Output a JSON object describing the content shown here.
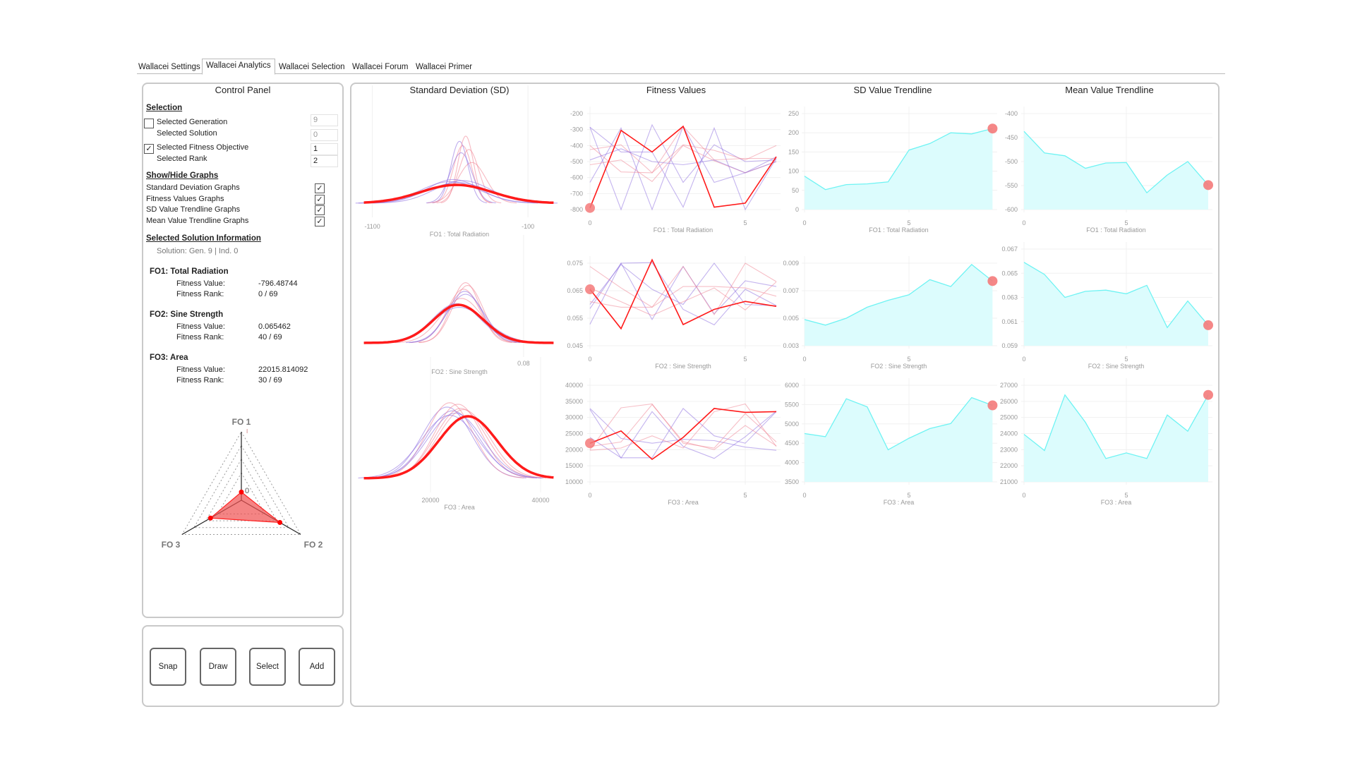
{
  "tabs": [
    "Wallacei Settings",
    "Wallacei Analytics",
    "Wallacei Selection",
    "Wallacei Forum",
    "Wallacei Primer"
  ],
  "active_tab": "Wallacei Analytics",
  "control_panel": {
    "title": "Control Panel",
    "selection": {
      "heading": "Selection",
      "selected_generation_label": "Selected Generation",
      "selected_generation_value": "9",
      "selected_generation_checked": false,
      "selected_solution_label": "Selected Solution",
      "selected_solution_value": "0",
      "selected_fitness_objective_label": "Selected Fitness Objective",
      "selected_fitness_objective_value": "1",
      "selected_fitness_objective_checked": true,
      "selected_rank_label": "Selected Rank",
      "selected_rank_value": "2"
    },
    "show_hide": {
      "heading": "Show/Hide Graphs",
      "items": [
        {
          "label": "Standard Deviation Graphs",
          "checked": true
        },
        {
          "label": "Fitness Values Graphs",
          "checked": true
        },
        {
          "label": "SD Value Trendline Graphs",
          "checked": true
        },
        {
          "label": "Mean Value Trendline Graphs",
          "checked": true
        }
      ]
    },
    "solution_info": {
      "heading": "Selected Solution Information",
      "solution": "Solution: Gen. 9 | Ind. 0",
      "objectives": [
        {
          "name": "FO1:  Total Radiation",
          "value_label": "Fitness Value:",
          "value": "-796.48744",
          "rank_label": "Fitness Rank:",
          "rank": "0 / 69"
        },
        {
          "name": "FO2:  Sine Strength",
          "value_label": "Fitness Value:",
          "value": "0.065462",
          "rank_label": "Fitness Rank:",
          "rank": "40 / 69"
        },
        {
          "name": "FO3:  Area",
          "value_label": "Fitness Value:",
          "value": "22015.814092",
          "rank_label": "Fitness Rank:",
          "rank": "30 / 69"
        }
      ]
    },
    "radar": {
      "axes": [
        "FO 1",
        "FO 2",
        "FO 3"
      ],
      "values": [
        0.12,
        0.65,
        0.52
      ],
      "zero_label": "0",
      "top_tick": "I",
      "fill_color": "#f05050"
    }
  },
  "buttons": [
    "Snap",
    "Draw",
    "Select",
    "Add"
  ],
  "columns": [
    "Standard Deviation (SD)",
    "Fitness Values",
    "SD Value Trendline",
    "Mean Value Trendline"
  ],
  "colors": {
    "selected": "#ff1a1a",
    "pink": "#f08090",
    "purple": "#8a6ae0",
    "trend_line": "#6ff3f3",
    "trend_fill": "#dcfcfd",
    "marker": "#f47a7a"
  },
  "chart_data": [
    {
      "kind": "sd",
      "type": "line",
      "xlabel": "FO1 : Total Radiation",
      "xticks": [
        -1100,
        -100
      ],
      "xlim": [
        -1180,
        90
      ],
      "curves": [
        {
          "mean": -560,
          "sd": 230,
          "selected": true
        },
        {
          "mean": -520,
          "sd": 60,
          "c": "pink"
        },
        {
          "mean": -540,
          "sd": 55,
          "c": "purple"
        },
        {
          "mean": -500,
          "sd": 50,
          "c": "pink"
        },
        {
          "mean": -460,
          "sd": 90,
          "c": "pink"
        },
        {
          "mean": -530,
          "sd": 70,
          "c": "purple"
        },
        {
          "mean": -480,
          "sd": 65,
          "c": "pink"
        },
        {
          "mean": -600,
          "sd": 190,
          "c": "purple"
        },
        {
          "mean": -580,
          "sd": 170,
          "c": "purple"
        },
        {
          "mean": -550,
          "sd": 200,
          "c": "purple"
        },
        {
          "mean": -520,
          "sd": 180,
          "c": "purple"
        }
      ]
    },
    {
      "kind": "fitness",
      "type": "line",
      "xlabel": "FO1 : Total Radiation",
      "xticks": [
        0,
        5
      ],
      "ylim": [
        -800,
        -200
      ],
      "yticks": [
        -200,
        -300,
        -400,
        -500,
        -600,
        -700,
        -800
      ],
      "series": [
        {
          "c": "purple",
          "values": [
            -285,
            -440,
            -440,
            -785,
            -290,
            -800,
            -480
          ]
        },
        {
          "c": "purple",
          "values": [
            -285,
            -800,
            -270,
            -630,
            -395,
            -500,
            -490
          ]
        },
        {
          "c": "purple",
          "values": [
            -630,
            -290,
            -800,
            -280,
            -630,
            -570,
            -470
          ]
        },
        {
          "c": "pink",
          "values": [
            -400,
            -565,
            -570,
            -280,
            -490,
            -480,
            -480
          ]
        },
        {
          "c": "pink",
          "values": [
            -425,
            -395,
            -570,
            -395,
            -430,
            -490,
            -400
          ]
        },
        {
          "c": "pink",
          "values": [
            -520,
            -490,
            -625,
            -400,
            -495,
            -570,
            -500
          ]
        },
        {
          "c": "purple",
          "values": [
            -490,
            -420,
            -500,
            -520,
            -490,
            -570,
            -500
          ]
        },
        {
          "c": "selected",
          "values": [
            -790,
            -305,
            -440,
            -280,
            -785,
            -760,
            -470
          ]
        }
      ]
    },
    {
      "kind": "sd_trend",
      "type": "area",
      "xlabel": "FO1 : Total Radiation",
      "xticks": [
        0,
        5
      ],
      "ylim": [
        0,
        250
      ],
      "yticks": [
        0,
        50,
        100,
        150,
        200,
        250
      ],
      "values": [
        87,
        52,
        65,
        67,
        72,
        155,
        172,
        200,
        197,
        211
      ]
    },
    {
      "kind": "mean_trend",
      "type": "area",
      "xlabel": "FO1 : Total Radiation",
      "xticks": [
        0,
        5
      ],
      "ylim": [
        -600,
        -400
      ],
      "yticks": [
        -400,
        -450,
        -500,
        -550,
        -600
      ],
      "values": [
        -437,
        -482,
        -488,
        -514,
        -503,
        -502,
        -565,
        -528,
        -500,
        -549
      ]
    },
    {
      "kind": "sd",
      "type": "line",
      "xlabel": "FO2 : Sine Strength",
      "xticks": [
        0.08
      ],
      "xlim": [
        0.0405,
        0.0882
      ],
      "curves": [
        {
          "mean": 0.0643,
          "sd": 0.006,
          "selected": true
        },
        {
          "mean": 0.066,
          "sd": 0.0035,
          "c": "pink"
        },
        {
          "mean": 0.0665,
          "sd": 0.0037,
          "c": "pink"
        },
        {
          "mean": 0.0655,
          "sd": 0.004,
          "c": "pink"
        },
        {
          "mean": 0.0658,
          "sd": 0.0042,
          "c": "purple"
        },
        {
          "mean": 0.066,
          "sd": 0.0045,
          "c": "purple"
        },
        {
          "mean": 0.065,
          "sd": 0.005,
          "c": "pink"
        },
        {
          "mean": 0.0638,
          "sd": 0.0058,
          "c": "purple"
        },
        {
          "mean": 0.0645,
          "sd": 0.0065,
          "c": "purple"
        }
      ]
    },
    {
      "kind": "fitness",
      "type": "line",
      "xlabel": "FO2 : Sine Strength",
      "xticks": [
        0,
        5
      ],
      "ylim": [
        0.045,
        0.075
      ],
      "yticks": [
        0.075,
        0.065,
        0.055,
        0.045
      ],
      "series": [
        {
          "c": "purple",
          "values": [
            0.0528,
            0.075,
            0.0752,
            0.0582,
            0.0526,
            0.0655,
            0.0596
          ]
        },
        {
          "c": "purple",
          "values": [
            0.0585,
            0.075,
            0.0545,
            0.0738,
            0.0566,
            0.0686,
            0.0665
          ]
        },
        {
          "c": "purple",
          "values": [
            0.06,
            0.0745,
            0.0655,
            0.06,
            0.075,
            0.06,
            0.0595
          ]
        },
        {
          "c": "pink",
          "values": [
            0.0738,
            0.066,
            0.059,
            0.0665,
            0.0665,
            0.066,
            0.063
          ]
        },
        {
          "c": "pink",
          "values": [
            0.061,
            0.059,
            0.059,
            0.0738,
            0.0563,
            0.075,
            0.0683
          ]
        },
        {
          "c": "pink",
          "values": [
            0.066,
            0.061,
            0.056,
            0.061,
            0.066,
            0.058,
            0.0682
          ]
        },
        {
          "c": "selected",
          "values": [
            0.0655,
            0.0512,
            0.0762,
            0.0527,
            0.0582,
            0.0611,
            0.0593
          ]
        }
      ]
    },
    {
      "kind": "sd_trend",
      "type": "area",
      "xlabel": "FO2 : Sine Strength",
      "xticks": [
        0,
        5
      ],
      "ylim": [
        0.003,
        0.009
      ],
      "yticks": [
        0.003,
        0.005,
        0.007,
        0.009
      ],
      "values": [
        0.0049,
        0.0045,
        0.005,
        0.0058,
        0.0063,
        0.0067,
        0.0078,
        0.0073,
        0.0089,
        0.0077
      ]
    },
    {
      "kind": "mean_trend",
      "type": "area",
      "xlabel": "FO2 : Sine Strength",
      "xticks": [
        0,
        5
      ],
      "ylim": [
        0.059,
        0.067
      ],
      "yticks": [
        0.059,
        0.061,
        0.063,
        0.065,
        0.067
      ],
      "values": [
        0.0659,
        0.0649,
        0.063,
        0.0635,
        0.0636,
        0.0633,
        0.064,
        0.0605,
        0.0627,
        0.0607
      ]
    },
    {
      "kind": "sd",
      "type": "line",
      "xlabel": "FO3 : Area",
      "xticks": [
        20000,
        40000
      ],
      "xlim": [
        7180,
        43080
      ],
      "curves": [
        {
          "mean": 26800,
          "sd": 5300,
          "selected": true
        },
        {
          "mean": 23000,
          "sd": 4500,
          "c": "purple"
        },
        {
          "mean": 23500,
          "sd": 4200,
          "c": "pink"
        },
        {
          "mean": 24000,
          "sd": 4800,
          "c": "purple"
        },
        {
          "mean": 25000,
          "sd": 4300,
          "c": "pink"
        },
        {
          "mean": 25500,
          "sd": 4600,
          "c": "pink"
        },
        {
          "mean": 24500,
          "sd": 5000,
          "c": "purple"
        },
        {
          "mean": 26000,
          "sd": 4700,
          "c": "pink"
        },
        {
          "mean": 23500,
          "sd": 5200,
          "c": "purple"
        }
      ]
    },
    {
      "kind": "fitness",
      "type": "line",
      "xlabel": "FO3 : Area",
      "xticks": [
        0,
        5
      ],
      "ylim": [
        10000,
        40000
      ],
      "yticks": [
        40000,
        35000,
        30000,
        25000,
        20000,
        15000,
        10000
      ],
      "series": [
        {
          "c": "purple",
          "values": [
            32800,
            23500,
            22000,
            23200,
            22800,
            20800,
            19800
          ]
        },
        {
          "c": "purple",
          "values": [
            23800,
            17500,
            17500,
            32800,
            24300,
            22000,
            31800
          ]
        },
        {
          "c": "purple",
          "values": [
            32500,
            17400,
            31800,
            21000,
            17300,
            24000,
            32000
          ]
        },
        {
          "c": "pink",
          "values": [
            20000,
            33000,
            34200,
            22000,
            20500,
            31200,
            22400
          ]
        },
        {
          "c": "pink",
          "values": [
            21000,
            22400,
            34000,
            22500,
            20000,
            27500,
            21200
          ]
        },
        {
          "c": "pink",
          "values": [
            19800,
            20500,
            24300,
            20500,
            31800,
            34200,
            21000
          ]
        },
        {
          "c": "selected",
          "values": [
            22000,
            25800,
            17000,
            23800,
            32800,
            31600,
            31800
          ]
        }
      ]
    },
    {
      "kind": "sd_trend",
      "type": "area",
      "xlabel": "FO3 : Area",
      "xticks": [
        0,
        5
      ],
      "ylim": [
        3500,
        6000
      ],
      "yticks": [
        3500,
        4000,
        4500,
        5000,
        5500,
        6000
      ],
      "values": [
        4750,
        4670,
        5650,
        5440,
        4330,
        4630,
        4880,
        5010,
        5680,
        5480
      ]
    },
    {
      "kind": "mean_trend",
      "type": "area",
      "xlabel": "FO3 : Area",
      "xticks": [
        0,
        5
      ],
      "ylim": [
        21000,
        27000
      ],
      "yticks": [
        21000,
        22000,
        23000,
        24000,
        25000,
        26000,
        27000
      ],
      "values": [
        23950,
        22950,
        26400,
        24700,
        22450,
        22800,
        22450,
        25150,
        24150,
        26400
      ]
    }
  ]
}
